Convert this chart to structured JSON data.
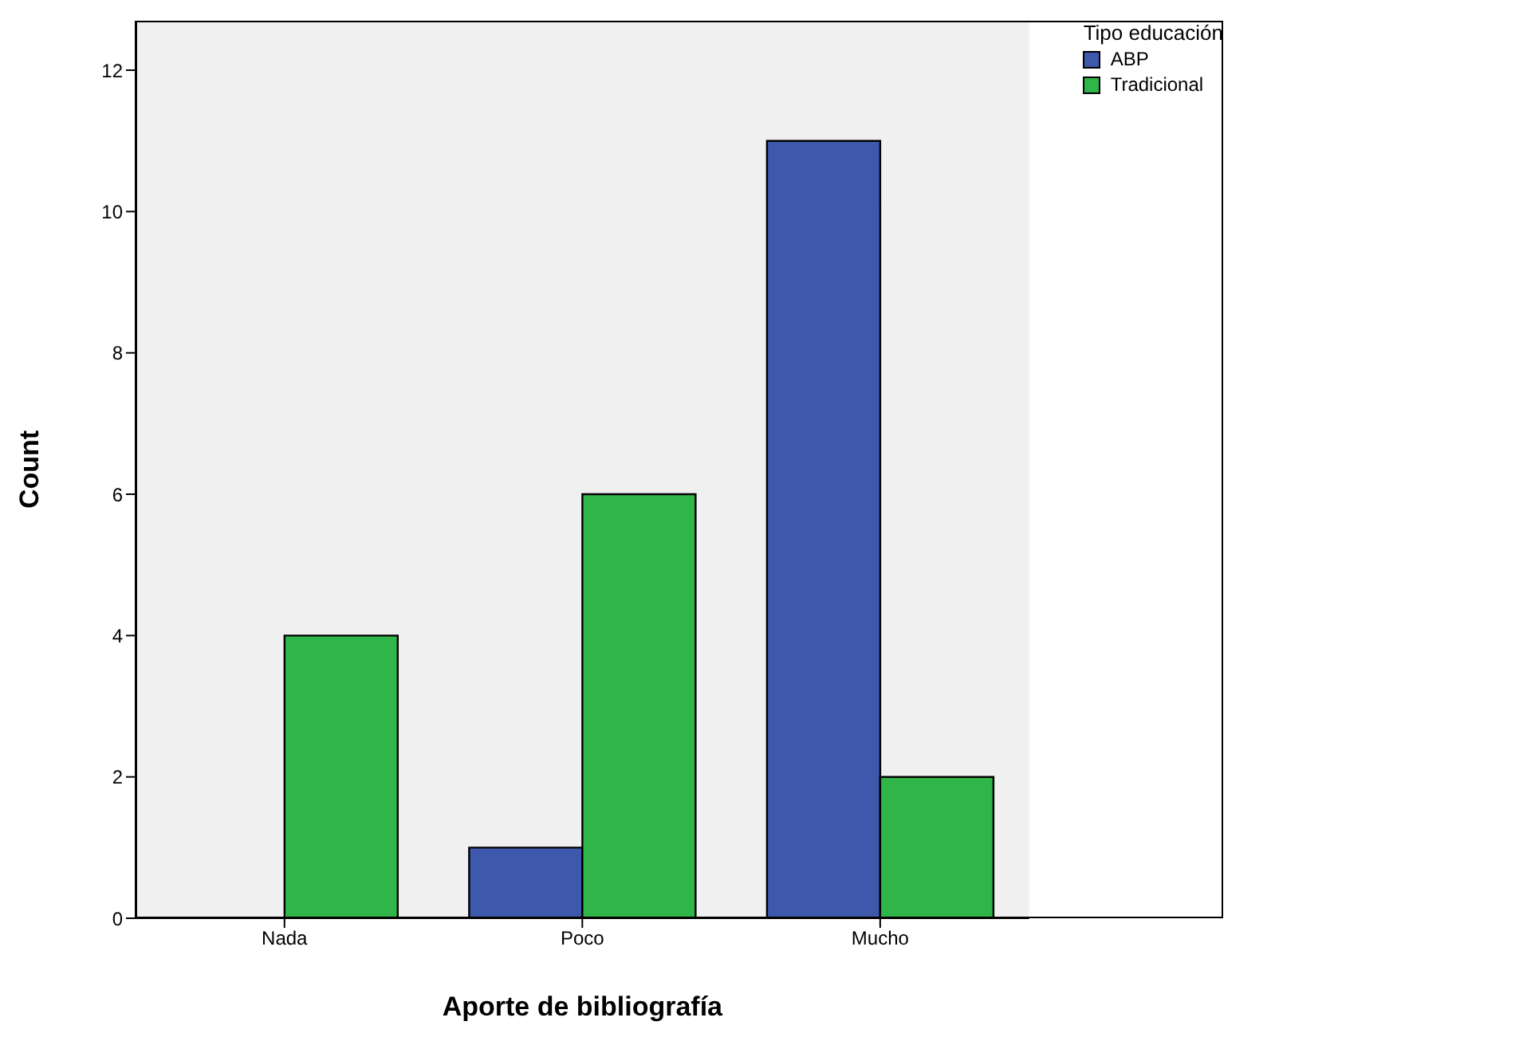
{
  "chart_data": {
    "type": "bar",
    "xlabel": "Aporte de bibliografía",
    "ylabel": "Count",
    "legend_title": "Tipo educación",
    "categories": [
      "Nada",
      "Poco",
      "Mucho"
    ],
    "series": [
      {
        "name": "ABP",
        "color": "#3e58ac",
        "values": [
          0,
          1,
          11
        ]
      },
      {
        "name": "Tradicional",
        "color": "#2fb548",
        "values": [
          4,
          6,
          2
        ]
      }
    ],
    "ylim": [
      0,
      12.7
    ],
    "yticks": [
      0,
      2,
      4,
      6,
      8,
      10,
      12
    ],
    "grid": false,
    "legend": "top right"
  }
}
